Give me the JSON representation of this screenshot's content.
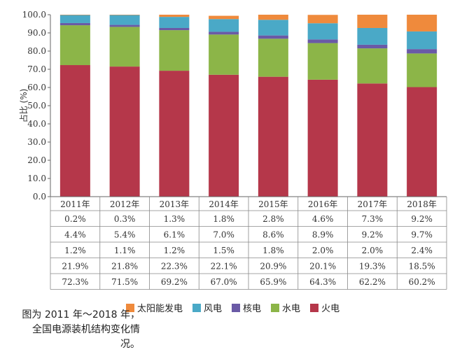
{
  "caption": "图为 2011 年～2018 年，全国电源装机结构变化情况。",
  "chart_data": {
    "type": "bar",
    "stacked": true,
    "categories": [
      "2011年",
      "2012年",
      "2013年",
      "2014年",
      "2015年",
      "2016年",
      "2017年",
      "2018年"
    ],
    "ylabel": "占比 (%)",
    "ylim": [
      0,
      100
    ],
    "yticks": [
      "0.0",
      "10.0",
      "20.0",
      "30.0",
      "40.0",
      "50.0",
      "60.0",
      "70.0",
      "80.0",
      "90.0",
      "100.0"
    ],
    "series": [
      {
        "name": "火电",
        "color": "#b5374a",
        "values": [
          72.3,
          71.5,
          69.2,
          67.0,
          65.9,
          64.3,
          62.2,
          60.2
        ],
        "labels": [
          "72.3%",
          "71.5%",
          "69.2%",
          "67.0%",
          "65.9%",
          "64.3%",
          "62.2%",
          "60.2%"
        ]
      },
      {
        "name": "水电",
        "color": "#8cb548",
        "values": [
          21.9,
          21.8,
          22.3,
          22.1,
          20.9,
          20.1,
          19.3,
          18.5
        ],
        "labels": [
          "21.9%",
          "21.8%",
          "22.3%",
          "22.1%",
          "20.9%",
          "20.1%",
          "19.3%",
          "18.5%"
        ]
      },
      {
        "name": "核电",
        "color": "#6a5aa6",
        "values": [
          1.2,
          1.1,
          1.2,
          1.5,
          1.8,
          2.0,
          2.0,
          2.4
        ],
        "labels": [
          "1.2%",
          "1.1%",
          "1.2%",
          "1.5%",
          "1.8%",
          "2.0%",
          "2.0%",
          "2.4%"
        ]
      },
      {
        "name": "风电",
        "color": "#4aa9c7",
        "values": [
          4.4,
          5.4,
          6.1,
          7.0,
          8.6,
          8.9,
          9.2,
          9.7
        ],
        "labels": [
          "4.4%",
          "5.4%",
          "6.1%",
          "7.0%",
          "8.6%",
          "8.9%",
          "9.2%",
          "9.7%"
        ]
      },
      {
        "name": "太阳能发电",
        "color": "#ef8a3c",
        "values": [
          0.2,
          0.3,
          1.3,
          1.8,
          2.8,
          4.6,
          7.3,
          9.2
        ],
        "labels": [
          "0.2%",
          "0.3%",
          "1.3%",
          "1.8%",
          "2.8%",
          "4.6%",
          "7.3%",
          "9.2%"
        ]
      }
    ],
    "table_row_order": [
      "太阳能发电",
      "风电",
      "核电",
      "水电",
      "火电"
    ],
    "legend_order": [
      "太阳能发电",
      "风电",
      "核电",
      "水电",
      "火电"
    ],
    "legend_position": "bottom"
  }
}
